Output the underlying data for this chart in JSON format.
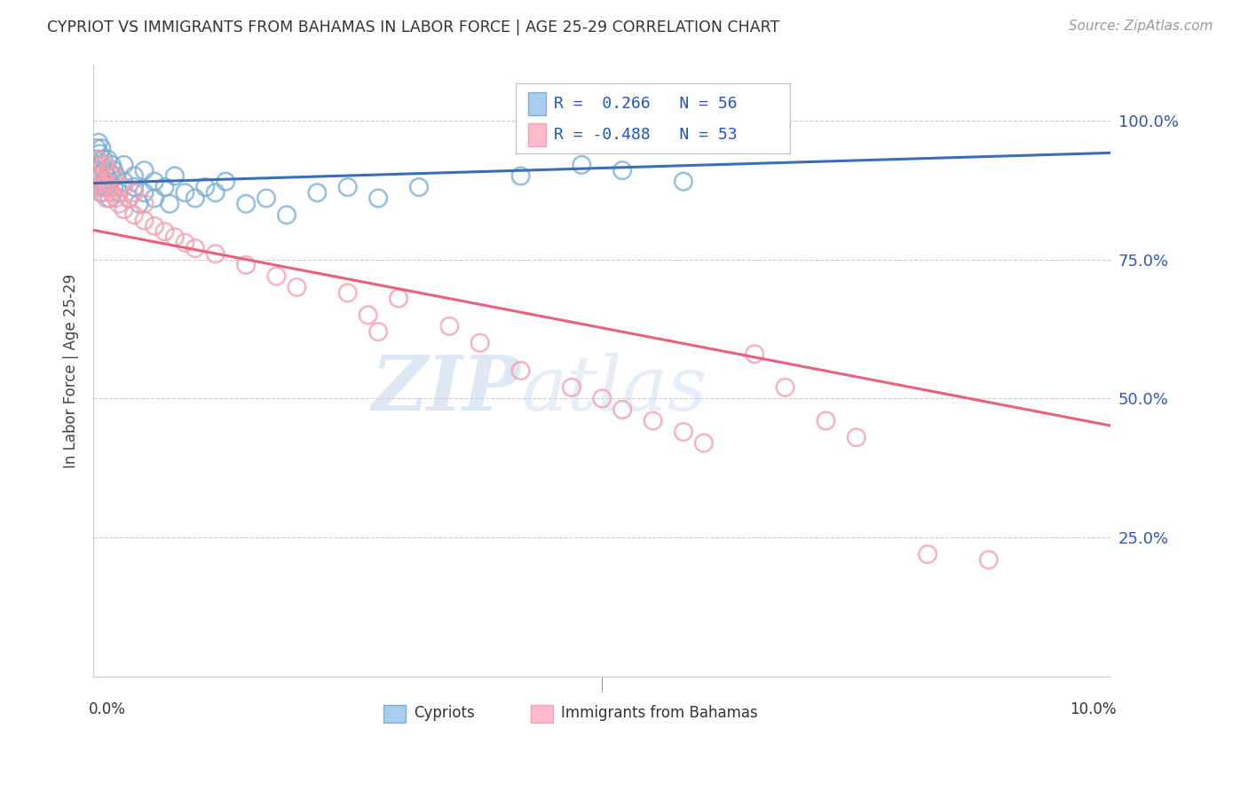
{
  "title": "CYPRIOT VS IMMIGRANTS FROM BAHAMAS IN LABOR FORCE | AGE 25-29 CORRELATION CHART",
  "source": "Source: ZipAtlas.com",
  "ylabel": "In Labor Force | Age 25-29",
  "ytick_vals": [
    0.0,
    0.25,
    0.5,
    0.75,
    1.0
  ],
  "ytick_labels": [
    "",
    "25.0%",
    "50.0%",
    "75.0%",
    "100.0%"
  ],
  "xlim": [
    0.0,
    0.1
  ],
  "ylim": [
    0.0,
    1.1
  ],
  "r1": 0.266,
  "r2": -0.488,
  "n1": 56,
  "n2": 53,
  "blue_scatter_color": "#7BAFD4",
  "pink_scatter_color": "#F4A0B0",
  "blue_line_color": "#3B6FB5",
  "pink_line_color": "#E8607A",
  "watermark_zip": "ZIP",
  "watermark_atlas": "atlas",
  "cypriot_x": [
    0.0002,
    0.0003,
    0.0003,
    0.0004,
    0.0004,
    0.0005,
    0.0005,
    0.0006,
    0.0006,
    0.0007,
    0.0007,
    0.0008,
    0.0008,
    0.0009,
    0.001,
    0.001,
    0.0011,
    0.0012,
    0.0013,
    0.0014,
    0.0015,
    0.0016,
    0.0018,
    0.002,
    0.002,
    0.0022,
    0.0025,
    0.003,
    0.003,
    0.0035,
    0.004,
    0.004,
    0.0045,
    0.005,
    0.005,
    0.006,
    0.006,
    0.007,
    0.0075,
    0.008,
    0.009,
    0.01,
    0.011,
    0.012,
    0.013,
    0.015,
    0.017,
    0.019,
    0.022,
    0.025,
    0.028,
    0.032,
    0.042,
    0.048,
    0.052,
    0.058
  ],
  "cypriot_y": [
    0.92,
    0.95,
    0.9,
    0.93,
    0.88,
    0.96,
    0.91,
    0.89,
    0.94,
    0.9,
    0.87,
    0.92,
    0.95,
    0.88,
    0.93,
    0.89,
    0.91,
    0.88,
    0.9,
    0.93,
    0.89,
    0.86,
    0.92,
    0.91,
    0.88,
    0.9,
    0.87,
    0.89,
    0.92,
    0.86,
    0.88,
    0.9,
    0.85,
    0.87,
    0.91,
    0.89,
    0.86,
    0.88,
    0.85,
    0.9,
    0.87,
    0.86,
    0.88,
    0.87,
    0.89,
    0.85,
    0.86,
    0.83,
    0.87,
    0.88,
    0.86,
    0.88,
    0.9,
    0.92,
    0.91,
    0.89
  ],
  "bahamas_x": [
    0.0002,
    0.0003,
    0.0004,
    0.0005,
    0.0006,
    0.0007,
    0.0008,
    0.0009,
    0.001,
    0.0011,
    0.0012,
    0.0013,
    0.0015,
    0.0016,
    0.0018,
    0.002,
    0.0022,
    0.0025,
    0.003,
    0.003,
    0.0035,
    0.004,
    0.004,
    0.005,
    0.005,
    0.006,
    0.007,
    0.008,
    0.009,
    0.01,
    0.012,
    0.015,
    0.018,
    0.02,
    0.025,
    0.027,
    0.028,
    0.03,
    0.035,
    0.038,
    0.042,
    0.047,
    0.05,
    0.052,
    0.055,
    0.058,
    0.06,
    0.065,
    0.068,
    0.072,
    0.075,
    0.082,
    0.088
  ],
  "bahamas_y": [
    0.92,
    0.9,
    0.93,
    0.89,
    0.91,
    0.88,
    0.9,
    0.87,
    0.92,
    0.88,
    0.89,
    0.86,
    0.91,
    0.88,
    0.87,
    0.9,
    0.86,
    0.85,
    0.88,
    0.84,
    0.86,
    0.83,
    0.87,
    0.82,
    0.85,
    0.81,
    0.8,
    0.79,
    0.78,
    0.77,
    0.76,
    0.74,
    0.72,
    0.7,
    0.69,
    0.65,
    0.62,
    0.68,
    0.63,
    0.6,
    0.55,
    0.52,
    0.5,
    0.48,
    0.46,
    0.44,
    0.42,
    0.58,
    0.52,
    0.46,
    0.43,
    0.22,
    0.21
  ]
}
